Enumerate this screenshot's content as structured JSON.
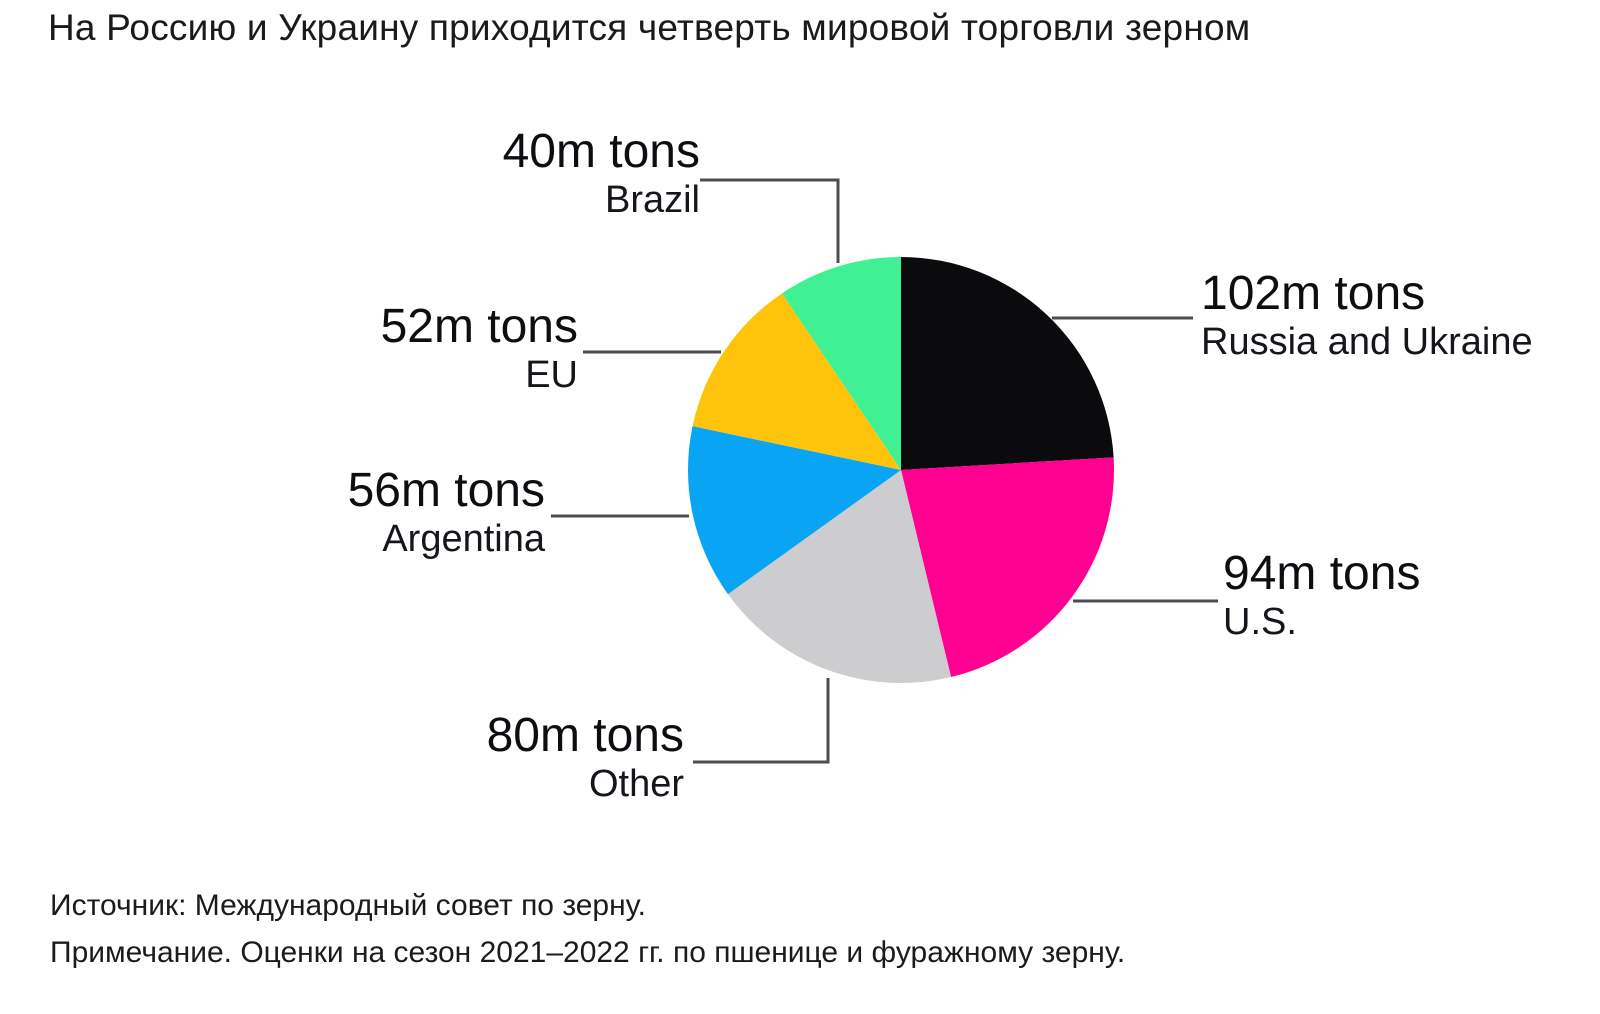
{
  "title": "На Россию и Украину приходится четверть мировой торговли зерном",
  "chart_data": {
    "type": "pie",
    "title": "На Россию и Украину приходится четверть мировой торговли зерном",
    "unit": "m tons",
    "start_angle_deg": 0,
    "direction": "clockwise",
    "legend_position": "callouts",
    "slices": [
      {
        "label": "Russia and Ukraine",
        "value": 102,
        "value_label": "102m tons",
        "color": "#0b0b0e",
        "side": "right"
      },
      {
        "label": "U.S.",
        "value": 94,
        "value_label": "94m tons",
        "color": "#ff0090",
        "side": "right"
      },
      {
        "label": "Other",
        "value": 80,
        "value_label": "80m tons",
        "color": "#cdcdcf",
        "side": "left"
      },
      {
        "label": "Argentina",
        "value": 56,
        "value_label": "56m tons",
        "color": "#09a4f3",
        "side": "left"
      },
      {
        "label": "EU",
        "value": 52,
        "value_label": "52m tons",
        "color": "#fdc40b",
        "side": "left"
      },
      {
        "label": "Brazil",
        "value": 40,
        "value_label": "40m tons",
        "color": "#40f193",
        "side": "left"
      }
    ]
  },
  "footer": {
    "source": "Источник: Международный совет по зерну.",
    "note": "Примечание. Оценки на сезон 2021–2022 гг. по пшенице и фуражному зерну."
  }
}
